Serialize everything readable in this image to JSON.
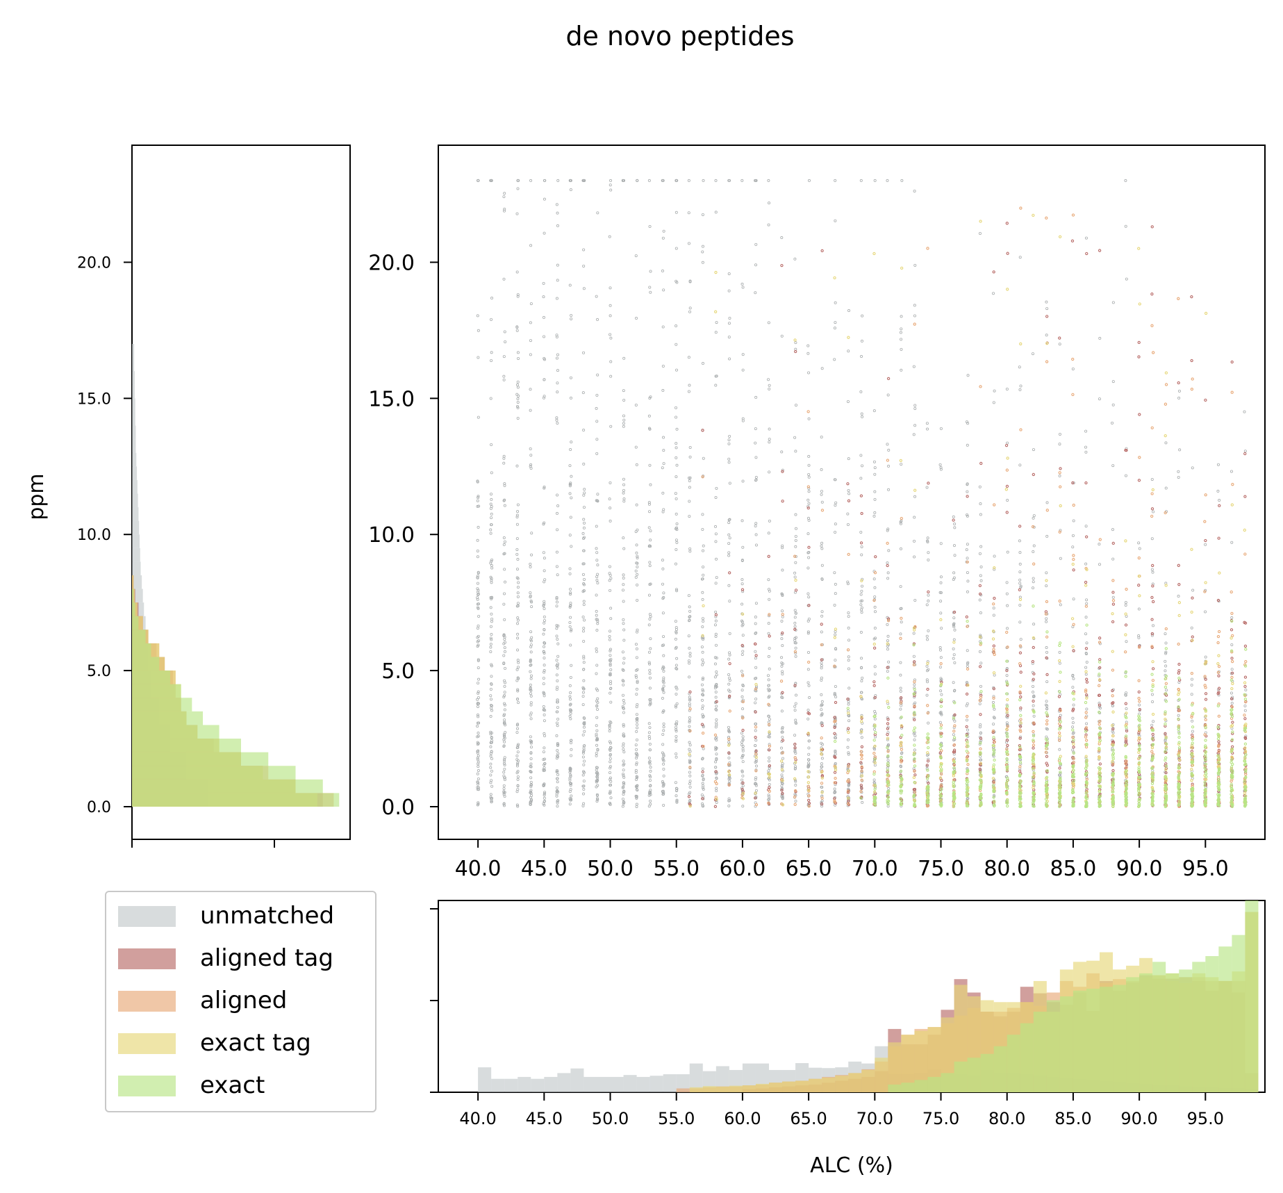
{
  "chart_data": {
    "title": "de novo peptides",
    "colors": {
      "unmatched": "#c3cacb",
      "aligned tag": "#b86b68",
      "aligned": "#e8a978",
      "exact tag": "#e6d77a",
      "exact": "#b8e585"
    },
    "legend": {
      "placement": "lower-left",
      "entries": [
        "unmatched",
        "aligned tag",
        "aligned",
        "exact tag",
        "exact"
      ]
    },
    "charts": [
      {
        "id": "scatter",
        "type": "scatter",
        "xlim": [
          37,
          99.5
        ],
        "ylim": [
          -1.2,
          24.3
        ],
        "x_ticks": [
          40,
          45,
          50,
          55,
          60,
          65,
          70,
          75,
          80,
          85,
          90,
          95
        ],
        "x_tick_labels": [
          "40.0",
          "45.0",
          "50.0",
          "55.0",
          "60.0",
          "65.0",
          "70.0",
          "75.0",
          "80.0",
          "85.0",
          "90.0",
          "95.0"
        ],
        "y_ticks": [
          0,
          5,
          10,
          15,
          20
        ],
        "y_tick_labels": [
          "0.0",
          "5.0",
          "10.0",
          "15.0",
          "20.0"
        ],
        "x_values": "integer ALC values 40–98",
        "y_range": [
          0,
          23
        ],
        "note": "density of points: unmatched dominates 40–70, matched categories dominate 75–98 near low ppm"
      },
      {
        "id": "hist_ppm",
        "type": "bar",
        "orientation": "horizontal",
        "ylabel": "ppm",
        "ylim": [
          -1.2,
          24.3
        ],
        "y_ticks": [
          0,
          5,
          10,
          15,
          20
        ],
        "y_tick_labels": [
          "0.0",
          "5.0",
          "10.0",
          "15.0",
          "20.0"
        ],
        "bin_width": 0.5,
        "bin_edges_start": 0,
        "density_xlim": [
          0,
          0.4
        ],
        "series": [
          {
            "name": "unmatched",
            "values": [
              0.14,
              0.14,
              0.1,
              0.1,
              0.07,
              0.07,
              0.05,
              0.05,
              0.035,
              0.035,
              0.03,
              0.03,
              0.028,
              0.025,
              0.022,
              0.02,
              0.018,
              0.016,
              0.015,
              0.014,
              0.013,
              0.012,
              0.011,
              0.01,
              0.009,
              0.008,
              0.007,
              0.007,
              0.006,
              0.006,
              0.005,
              0.005,
              0.004,
              0.004
            ]
          },
          {
            "name": "aligned tag",
            "values": [
              0.35,
              0.3,
              0.24,
              0.2,
              0.15,
              0.12,
              0.1,
              0.09,
              0.08,
              0.075,
              0.06,
              0.045,
              0.03,
              0.02,
              0.012,
              0.006,
              0.003
            ]
          },
          {
            "name": "aligned",
            "values": [
              0.37,
              0.3,
              0.25,
              0.2,
              0.16,
              0.12,
              0.1,
              0.09,
              0.08,
              0.08,
              0.06,
              0.05,
              0.03,
              0.02,
              0.01,
              0.005,
              0.003
            ]
          },
          {
            "name": "exact tag",
            "values": [
              0.34,
              0.3,
              0.24,
              0.2,
              0.16,
              0.12,
              0.1,
              0.09,
              0.09,
              0.08,
              0.06,
              0.05,
              0.03,
              0.02,
              0.01,
              0.005,
              0.003
            ]
          },
          {
            "name": "exact",
            "values": [
              0.38,
              0.35,
              0.3,
              0.25,
              0.2,
              0.16,
              0.13,
              0.11,
              0.09,
              0.07,
              0.05,
              0.035,
              0.025,
              0.012,
              0.006,
              0.003
            ]
          }
        ]
      },
      {
        "id": "hist_alc",
        "type": "bar",
        "orientation": "vertical",
        "xlabel": "ALC (%)",
        "xlim": [
          37,
          99.5
        ],
        "x_ticks": [
          40,
          45,
          50,
          55,
          60,
          65,
          70,
          75,
          80,
          85,
          90,
          95
        ],
        "x_tick_labels": [
          "40.0",
          "45.0",
          "50.0",
          "55.0",
          "60.0",
          "65.0",
          "70.0",
          "75.0",
          "80.0",
          "85.0",
          "90.0",
          "95.0"
        ],
        "y_tick_count": 3,
        "bin_edges_start": 40,
        "bin_width": 1,
        "density_ylim": [
          0,
          0.05
        ],
        "series": [
          {
            "name": "unmatched",
            "values": [
              0.0065,
              0.0035,
              0.0035,
              0.004,
              0.0035,
              0.004,
              0.005,
              0.0062,
              0.004,
              0.004,
              0.004,
              0.0045,
              0.004,
              0.0043,
              0.0047,
              0.0047,
              0.0075,
              0.0055,
              0.0068,
              0.0058,
              0.0075,
              0.0075,
              0.0058,
              0.0058,
              0.0076,
              0.0064,
              0.0063,
              0.0065,
              0.008,
              0.0075,
              0.012,
              0.0048,
              0.0048,
              0.005,
              0.006,
              0.005,
              0.0048,
              0.0045,
              0.0058,
              0.005,
              0.005,
              0.0048,
              0.0045,
              0.004,
              0.0038,
              0.0035,
              0.0033,
              0.003,
              0.0028,
              0.0025,
              0.0022,
              0.002,
              0.0018,
              0.0016,
              0.0015,
              0.0013,
              0.0012,
              0.0011,
              0.001
            ]
          },
          {
            "name": "aligned tag",
            "values": [
              0,
              0,
              0,
              0,
              0,
              0,
              0,
              0,
              0,
              0,
              0,
              0,
              0,
              0,
              0,
              0,
              0,
              0,
              0,
              0,
              0.0008,
              0.001,
              0.0013,
              0.0015,
              0.0018,
              0.002,
              0.0025,
              0.003,
              0.0035,
              0.004,
              0.0055,
              0.0165,
              0.0125,
              0.0125,
              0.015,
              0.0215,
              0.0295,
              0.026,
              0.021,
              0.0198,
              0.021,
              0.0275,
              0.0258,
              0.0235,
              0.0228,
              0.026,
              0.0212,
              0.029,
              0.0265,
              0.0286,
              0.0305,
              0.0296,
              0.0296,
              0.03,
              0.029,
              0.0265,
              0.029,
              0.026,
              0.005
            ]
          },
          {
            "name": "aligned",
            "values": [
              0,
              0,
              0,
              0,
              0,
              0,
              0,
              0,
              0,
              0,
              0,
              0,
              0,
              0,
              0,
              0.001,
              0.001,
              0.0013,
              0.0015,
              0.0015,
              0.0018,
              0.002,
              0.0025,
              0.0028,
              0.003,
              0.0035,
              0.004,
              0.0045,
              0.005,
              0.006,
              0.008,
              0.012,
              0.015,
              0.0165,
              0.017,
              0.018,
              0.02,
              0.022,
              0.021,
              0.021,
              0.022,
              0.0235,
              0.0225,
              0.026,
              0.029,
              0.0275,
              0.031,
              0.0285,
              0.0295,
              0.029,
              0.03,
              0.0305,
              0.029,
              0.0285,
              0.03,
              0.029,
              0.029,
              0.029,
              0.047
            ]
          },
          {
            "name": "exact tag",
            "values": [
              0,
              0,
              0,
              0,
              0,
              0,
              0,
              0,
              0,
              0,
              0,
              0,
              0,
              0,
              0,
              0,
              0.0013,
              0.0016,
              0.0015,
              0.0017,
              0.0018,
              0.0022,
              0.0025,
              0.0028,
              0.003,
              0.0035,
              0.0038,
              0.0043,
              0.005,
              0.0058,
              0.009,
              0.013,
              0.015,
              0.016,
              0.017,
              0.0195,
              0.028,
              0.025,
              0.024,
              0.0235,
              0.0235,
              0.0235,
              0.029,
              0.021,
              0.032,
              0.034,
              0.0343,
              0.0365,
              0.032,
              0.033,
              0.035,
              0.0305,
              0.031,
              0.03,
              0.031,
              0.03,
              0.029,
              0.0315,
              0.047
            ]
          },
          {
            "name": "exact",
            "values": [
              0,
              0,
              0,
              0,
              0,
              0,
              0,
              0,
              0,
              0,
              0,
              0,
              0,
              0,
              0,
              0,
              0,
              0,
              0,
              0,
              0,
              0,
              0,
              0,
              0,
              0,
              0,
              0,
              0,
              0,
              0,
              0.002,
              0.0025,
              0.0032,
              0.004,
              0.005,
              0.008,
              0.009,
              0.01,
              0.012,
              0.015,
              0.018,
              0.021,
              0.024,
              0.025,
              0.0265,
              0.027,
              0.0275,
              0.028,
              0.03,
              0.031,
              0.034,
              0.031,
              0.032,
              0.034,
              0.0355,
              0.038,
              0.041,
              0.05
            ]
          }
        ]
      }
    ]
  }
}
